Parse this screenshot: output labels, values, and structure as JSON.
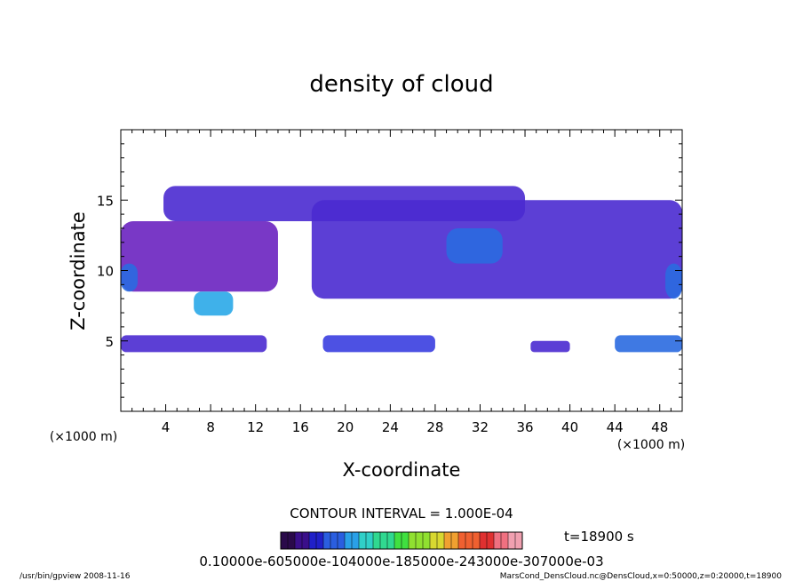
{
  "chart_data": {
    "type": "heatmap",
    "title": "density of cloud",
    "xlabel": "X-coordinate",
    "ylabel": "Z-coordinate",
    "x_unit_left": "(×1000 m)",
    "x_unit_right": "(×1000 m)",
    "xlim": [
      0,
      50
    ],
    "ylim": [
      0,
      20
    ],
    "xticks": [
      4,
      8,
      12,
      16,
      20,
      24,
      28,
      32,
      36,
      40,
      44,
      48
    ],
    "yticks": [
      5,
      10,
      15
    ],
    "contour_interval": "CONTOUR INTERVAL = 1.000E-04",
    "time_label": "t=18900 s",
    "colorbar_label": "0.10000e-605000e-104000e-185000e-243000e-307000e-03",
    "colorbar_colors": [
      "#2a0a4a",
      "#3a0f8a",
      "#2020c8",
      "#2a5ee0",
      "#2aa0e8",
      "#30d0c8",
      "#30d890",
      "#40e040",
      "#90e030",
      "#d8d830",
      "#f0a030",
      "#f06030",
      "#e03030",
      "#f07080",
      "#f0a0b0"
    ],
    "regions": [
      {
        "name": "upper-cloud-band",
        "x0": 3.8,
        "x1": 36,
        "z0": 13.5,
        "z1": 16.0,
        "level": 0.25
      },
      {
        "name": "mid-cloud-east",
        "x0": 17,
        "x1": 50,
        "z0": 8.0,
        "z1": 15.0,
        "level": 0.3
      },
      {
        "name": "west-cloud-layer",
        "x0": 0,
        "x1": 14,
        "z0": 8.5,
        "z1": 13.5,
        "level": 0.2
      },
      {
        "name": "center-dense-core",
        "x0": 29,
        "x1": 34,
        "z0": 10.5,
        "z1": 13.0,
        "level": 0.55
      },
      {
        "name": "left-dense-core",
        "x0": 6.5,
        "x1": 10,
        "z0": 6.8,
        "z1": 8.5,
        "level": 0.75
      },
      {
        "name": "low-band-1",
        "x0": 0,
        "x1": 13,
        "z0": 4.2,
        "z1": 5.4,
        "level": 0.35
      },
      {
        "name": "low-band-2",
        "x0": 18,
        "x1": 28,
        "z0": 4.2,
        "z1": 5.4,
        "level": 0.45
      },
      {
        "name": "low-band-3",
        "x0": 44,
        "x1": 50,
        "z0": 4.2,
        "z1": 5.4,
        "level": 0.5
      },
      {
        "name": "low-band-4",
        "x0": 36.5,
        "x1": 40,
        "z0": 4.2,
        "z1": 5.0,
        "level": 0.35
      },
      {
        "name": "right-edge-core",
        "x0": 48.5,
        "x1": 50,
        "z0": 8.0,
        "z1": 10.5,
        "level": 0.55
      },
      {
        "name": "left-edge-core",
        "x0": 0,
        "x1": 1.5,
        "z0": 8.5,
        "z1": 10.5,
        "level": 0.5
      }
    ]
  },
  "footer": {
    "left": "/usr/bin/gpview   2008-11-16",
    "right": "MarsCond_DensCloud.nc@DensCloud,x=0:50000,z=0:20000,t=18900"
  }
}
